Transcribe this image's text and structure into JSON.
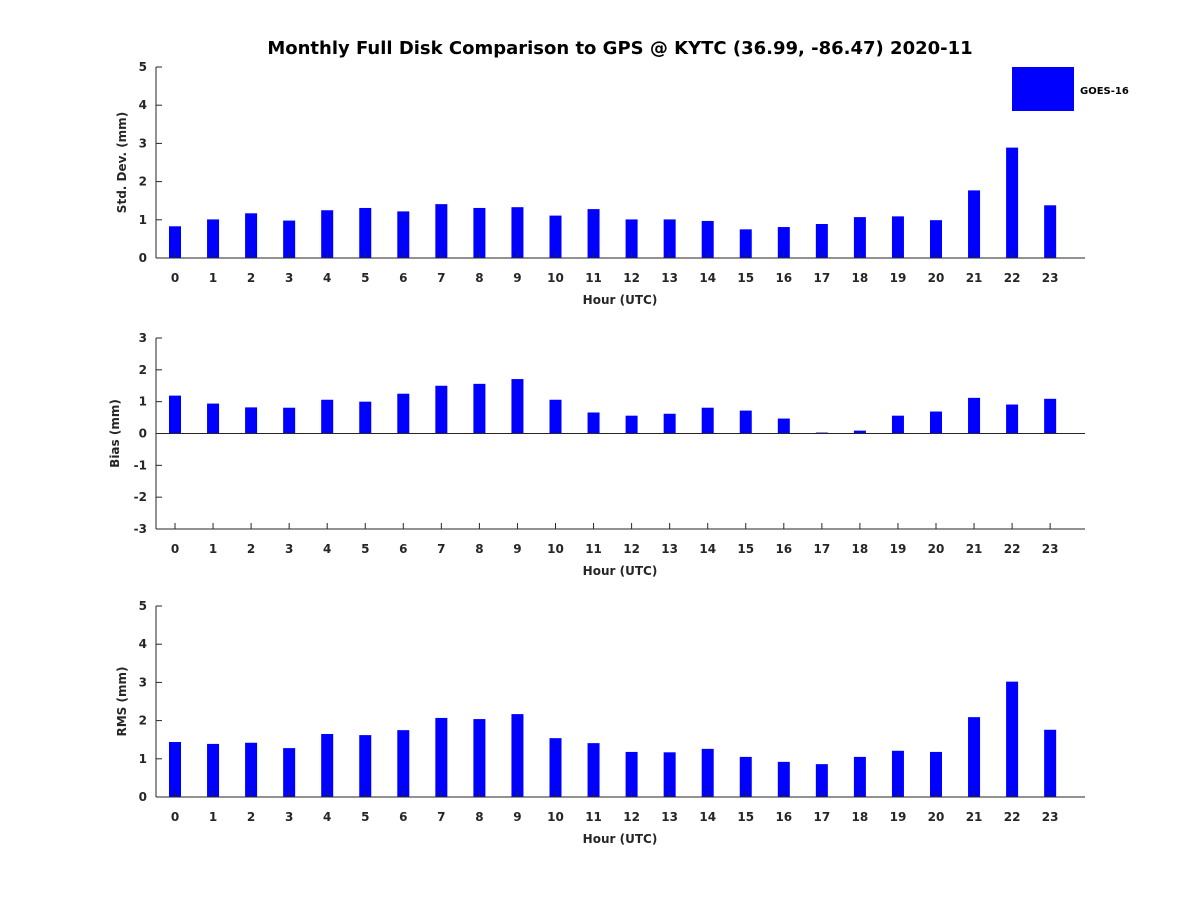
{
  "title": "Monthly Full Disk Comparison to GPS @ KYTC (36.99, -86.47) 2020-11",
  "legend": {
    "label": "GOES-16",
    "color": "#0000ff",
    "placement": "top-right"
  },
  "chart_data": [
    {
      "type": "bar",
      "xlabel": "Hour (UTC)",
      "ylabel": "Std. Dev. (mm)",
      "ylim": [
        0,
        5
      ],
      "yticks": [
        "0",
        "1",
        "2",
        "3",
        "4",
        "5"
      ],
      "categories": [
        "0",
        "1",
        "2",
        "3",
        "4",
        "5",
        "6",
        "7",
        "8",
        "9",
        "10",
        "11",
        "12",
        "13",
        "14",
        "15",
        "16",
        "17",
        "18",
        "19",
        "20",
        "21",
        "22",
        "23"
      ],
      "series": [
        {
          "name": "GOES-16",
          "color": "#0000ff",
          "values": [
            0.83,
            1.01,
            1.17,
            0.98,
            1.25,
            1.31,
            1.22,
            1.41,
            1.31,
            1.33,
            1.11,
            1.28,
            1.01,
            1.01,
            0.97,
            0.75,
            0.81,
            0.89,
            1.07,
            1.09,
            0.99,
            1.77,
            2.89,
            1.38
          ]
        }
      ]
    },
    {
      "type": "bar",
      "xlabel": "Hour (UTC)",
      "ylabel": "Bias (mm)",
      "ylim": [
        -3,
        3
      ],
      "yticks": [
        "-3",
        "-2",
        "-1",
        "0",
        "1",
        "2",
        "3"
      ],
      "categories": [
        "0",
        "1",
        "2",
        "3",
        "4",
        "5",
        "6",
        "7",
        "8",
        "9",
        "10",
        "11",
        "12",
        "13",
        "14",
        "15",
        "16",
        "17",
        "18",
        "19",
        "20",
        "21",
        "22",
        "23"
      ],
      "series": [
        {
          "name": "GOES-16",
          "color": "#0000ff",
          "values": [
            1.19,
            0.94,
            0.82,
            0.81,
            1.06,
            1.0,
            1.25,
            1.5,
            1.56,
            1.71,
            1.06,
            0.66,
            0.56,
            0.62,
            0.81,
            0.72,
            0.47,
            0.03,
            0.09,
            0.56,
            0.69,
            1.12,
            0.91,
            1.09
          ]
        }
      ]
    },
    {
      "type": "bar",
      "xlabel": "Hour (UTC)",
      "ylabel": "RMS (mm)",
      "ylim": [
        0,
        5
      ],
      "yticks": [
        "0",
        "1",
        "2",
        "3",
        "4",
        "5"
      ],
      "categories": [
        "0",
        "1",
        "2",
        "3",
        "4",
        "5",
        "6",
        "7",
        "8",
        "9",
        "10",
        "11",
        "12",
        "13",
        "14",
        "15",
        "16",
        "17",
        "18",
        "19",
        "20",
        "21",
        "22",
        "23"
      ],
      "series": [
        {
          "name": "GOES-16",
          "color": "#0000ff",
          "values": [
            1.44,
            1.39,
            1.42,
            1.28,
            1.65,
            1.62,
            1.75,
            2.07,
            2.04,
            2.17,
            1.54,
            1.41,
            1.18,
            1.17,
            1.26,
            1.05,
            0.92,
            0.86,
            1.05,
            1.21,
            1.18,
            2.09,
            3.02,
            1.76
          ]
        }
      ]
    }
  ]
}
